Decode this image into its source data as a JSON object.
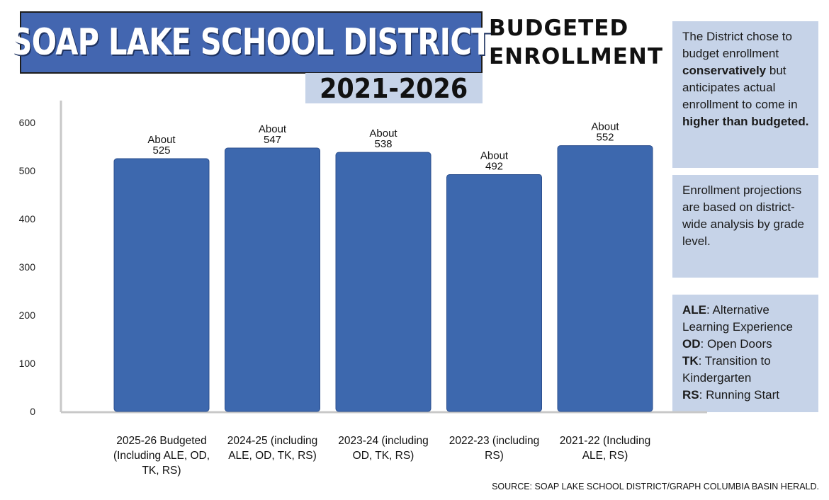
{
  "header": {
    "title": "SOAP LAKE  SCHOOL DISTRICT",
    "years": "2021-2026",
    "subtitle_line1": "BUDGETED",
    "subtitle_line2": "ENROLLMENT"
  },
  "notes": {
    "note1": {
      "p1": "The District chose to budget enrollment ",
      "b1": "conservatively",
      "p2": " but anticipates actual enrollment to come in ",
      "b2": "higher than budgeted."
    },
    "note2": "Enrollment projections are based on district-wide analysis by grade level.",
    "note3": [
      {
        "abbr": "ALE",
        "text": ": Alternative Learning Experience"
      },
      {
        "abbr": "OD",
        "text": ": Open Doors"
      },
      {
        "abbr": "TK",
        "text": ": Transition to Kindergarten"
      },
      {
        "abbr": "RS",
        "text": ": Running Start"
      }
    ]
  },
  "source": "SOURCE: SOAP LAKE SCHOOL DISTRICT/GRAPH COLUMBIA BASIN HERALD.",
  "colors": {
    "bar": "#3d68ae",
    "bar_edge": "#2c4f8e",
    "title_band": "#4366b0",
    "years_band": "#c6d3e8",
    "note_box": "#c6d3e8",
    "axis": "#c8c8c8"
  },
  "chart_data": {
    "type": "bar",
    "categories": [
      [
        "2025-26 Budgeted",
        "(Including ALE, OD,",
        "TK, RS)"
      ],
      [
        "2024-25 (including",
        "ALE, OD, TK, RS)"
      ],
      [
        "2023-24 (including",
        "OD, TK, RS)"
      ],
      [
        "2022-23 (including",
        "RS)"
      ],
      [
        "2021-22 (Including",
        "ALE, RS)"
      ]
    ],
    "values": [
      525,
      547,
      538,
      492,
      552
    ],
    "data_label_prefix": "About",
    "yticks": [
      0,
      100,
      200,
      300,
      400,
      500,
      600
    ],
    "ylim": [
      0,
      650
    ],
    "grid": false,
    "legend": "none"
  }
}
